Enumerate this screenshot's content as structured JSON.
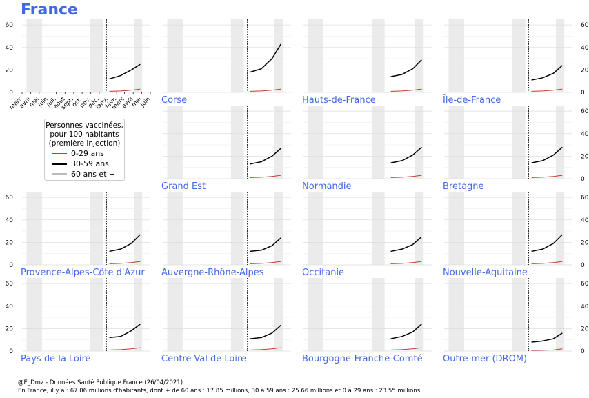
{
  "title": "France",
  "legend": {
    "title_lines": [
      "Personnes vaccinées,",
      "pour 100 habitants",
      "(première injection)"
    ],
    "items": [
      {
        "label": "0-29 ans",
        "color": "#c0392b"
      },
      {
        "label": "30-59 ans",
        "color": "#000000"
      },
      {
        "label": "60 ans et +",
        "color": "#bbbbbb"
      }
    ]
  },
  "footer": {
    "line1": "@E_Dmz - Données Santé Publique France (26/04/2021)",
    "line2": "En France, il y a : 67.06 millions d'habitants, dont + de 60 ans : 17.85 millions, 30 à 59 ans : 25.66 millions et 0 à 29 ans : 23.55 millions"
  },
  "colors": {
    "title": "#4169e1",
    "region_label": "#4169e1",
    "shade": "#ebebeb",
    "grid": "#dddddd"
  },
  "chart_data": {
    "type": "line",
    "y_range": [
      0,
      65
    ],
    "y_ticks": [
      0,
      20,
      40,
      60
    ],
    "x_range": [
      "2020-03-01",
      "2021-06-01"
    ],
    "x_tick_labels": [
      "mars",
      "avril",
      "mai",
      "juin",
      "juil.",
      "août",
      "sept.",
      "oct.",
      "nov.",
      "déc.",
      "janv.",
      "févr.",
      "mars",
      "avril",
      "mai",
      "juin"
    ],
    "vline_date": "2020-12-27",
    "shaded_periods": [
      [
        "2020-03-17",
        "2020-05-11"
      ],
      [
        "2020-10-30",
        "2020-12-15"
      ],
      [
        "2021-04-03",
        "2021-05-03"
      ]
    ],
    "panels": [
      {
        "name": "",
        "series": {
          "30-59 ans": [
            12,
            15,
            20,
            25
          ],
          "0-29 ans": [
            1,
            1.3,
            2,
            3
          ]
        }
      },
      {
        "name": "Corse",
        "series": {
          "30-59 ans": [
            18,
            21,
            30,
            43
          ],
          "0-29 ans": [
            1,
            1.3,
            2,
            3
          ]
        }
      },
      {
        "name": "Hauts-de-France",
        "series": {
          "30-59 ans": [
            14,
            16,
            21,
            29
          ],
          "0-29 ans": [
            1,
            1.3,
            2,
            3
          ]
        }
      },
      {
        "name": "Île-de-France",
        "series": {
          "30-59 ans": [
            11,
            13,
            17,
            24
          ],
          "0-29 ans": [
            1,
            1.3,
            2,
            3
          ]
        }
      },
      {
        "name": "Grand Est",
        "series": {
          "30-59 ans": [
            13,
            15,
            20,
            27
          ],
          "0-29 ans": [
            1,
            1.3,
            2,
            3
          ]
        }
      },
      {
        "name": "Normandie",
        "series": {
          "30-59 ans": [
            14,
            16,
            21,
            28
          ],
          "0-29 ans": [
            1,
            1.3,
            2,
            3
          ]
        }
      },
      {
        "name": "Bretagne",
        "series": {
          "30-59 ans": [
            14,
            16,
            21,
            28
          ],
          "0-29 ans": [
            1,
            1.3,
            2,
            3
          ]
        }
      },
      {
        "name": "Provence-Alpes-Côte d'Azur",
        "series": {
          "30-59 ans": [
            12,
            14,
            19,
            27
          ],
          "0-29 ans": [
            1,
            1.3,
            2,
            3
          ]
        }
      },
      {
        "name": "Auvergne-Rhône-Alpes",
        "series": {
          "30-59 ans": [
            12,
            13,
            17,
            24
          ],
          "0-29 ans": [
            1,
            1.3,
            2,
            3
          ]
        }
      },
      {
        "name": "Occitanie",
        "series": {
          "30-59 ans": [
            12,
            14,
            18,
            25
          ],
          "0-29 ans": [
            1,
            1.3,
            2,
            3
          ]
        }
      },
      {
        "name": "Nouvelle-Aquitaine",
        "series": {
          "30-59 ans": [
            12,
            14,
            19,
            27
          ],
          "0-29 ans": [
            1,
            1.3,
            2,
            3
          ]
        }
      },
      {
        "name": "Pays de la Loire",
        "series": {
          "30-59 ans": [
            12,
            13,
            18,
            24
          ],
          "0-29 ans": [
            1,
            1.3,
            2,
            3
          ]
        }
      },
      {
        "name": "Centre-Val de Loire",
        "series": {
          "30-59 ans": [
            11,
            12,
            16,
            23
          ],
          "0-29 ans": [
            1,
            1.3,
            2,
            3
          ]
        }
      },
      {
        "name": "Bourgogne-Franche-Comté",
        "series": {
          "30-59 ans": [
            11,
            13,
            17,
            24
          ],
          "0-29 ans": [
            1,
            1.3,
            2,
            3
          ]
        }
      },
      {
        "name": "Outre-mer (DROM)",
        "series": {
          "30-59 ans": [
            8,
            9,
            11,
            16
          ],
          "0-29 ans": [
            0.5,
            0.7,
            1,
            2
          ]
        }
      }
    ]
  }
}
